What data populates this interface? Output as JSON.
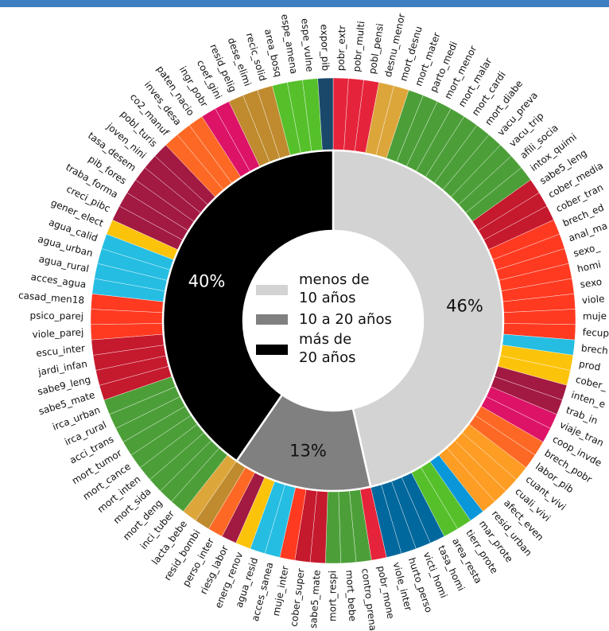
{
  "chart_data": {
    "type": "nested-donut",
    "inner_ring": [
      {
        "name": "menos de 10 años",
        "value": 46,
        "label": "46%",
        "color": "#d3d3d3",
        "text_color": "#111111"
      },
      {
        "name": "10 a 20 años",
        "value": 13,
        "label": "13%",
        "color": "#808080",
        "text_color": "#111111"
      },
      {
        "name": "más de 20 años",
        "value": 40,
        "label": "40%",
        "color": "#000000",
        "text_color": "#ffffff"
      }
    ],
    "legend": [
      {
        "line1": "menos de",
        "line2": "10 años",
        "color": "#d3d3d3"
      },
      {
        "line1": "10 a 20 años",
        "line2": "",
        "color": "#808080"
      },
      {
        "line1": "más de",
        "line2": "20 años",
        "color": "#000000"
      }
    ],
    "outer_ring": [
      {
        "label": "pobr_extr",
        "color": "#e5243b"
      },
      {
        "label": "pobr_multi",
        "color": "#e5243b"
      },
      {
        "label": "pobl_pensi",
        "color": "#e5243b"
      },
      {
        "label": "desnu_menor",
        "color": "#dda63a"
      },
      {
        "label": "mort_desnu",
        "color": "#dda63a"
      },
      {
        "label": "mort_mater",
        "color": "#4c9f38"
      },
      {
        "label": "parto_medi",
        "color": "#4c9f38"
      },
      {
        "label": "mort_menor",
        "color": "#4c9f38"
      },
      {
        "label": "mort_malar",
        "color": "#4c9f38"
      },
      {
        "label": "mort_cardi",
        "color": "#4c9f38"
      },
      {
        "label": "mort_diabe",
        "color": "#4c9f38"
      },
      {
        "label": "vacu_preva",
        "color": "#4c9f38"
      },
      {
        "label": "vacu_trip",
        "color": "#4c9f38"
      },
      {
        "label": "afili_socia",
        "color": "#4c9f38"
      },
      {
        "label": "intox_quimi",
        "color": "#4c9f38"
      },
      {
        "label": "sabe5_leng",
        "color": "#c5192d"
      },
      {
        "label": "cober_media",
        "color": "#c5192d"
      },
      {
        "label": "cober_tran",
        "color": "#c5192d"
      },
      {
        "label": "brech_ed",
        "color": "#ff3a21"
      },
      {
        "label": "anal_ma",
        "color": "#ff3a21"
      },
      {
        "label": "sexo_",
        "color": "#ff3a21"
      },
      {
        "label": "homi",
        "color": "#ff3a21"
      },
      {
        "label": "sexo",
        "color": "#ff3a21"
      },
      {
        "label": "viole",
        "color": "#ff3a21"
      },
      {
        "label": "muje",
        "color": "#ff3a21"
      },
      {
        "label": "fecup",
        "color": "#ff3a21"
      },
      {
        "label": "brech",
        "color": "#26bde2"
      },
      {
        "label": "prod",
        "color": "#fcc30b"
      },
      {
        "label": "cober_",
        "color": "#fcc30b"
      },
      {
        "label": "inten_e",
        "color": "#a21942"
      },
      {
        "label": "trab_in",
        "color": "#a21942"
      },
      {
        "label": "viaje_tran",
        "color": "#dd1367"
      },
      {
        "label": "coop_invde",
        "color": "#dd1367"
      },
      {
        "label": "brech_pobr",
        "color": "#fd6925"
      },
      {
        "label": "labor_pib",
        "color": "#fd6925"
      },
      {
        "label": "cuant_vivi",
        "color": "#fd9d24"
      },
      {
        "label": "cuali_vivi",
        "color": "#fd9d24"
      },
      {
        "label": "afect_even",
        "color": "#fd9d24"
      },
      {
        "label": "resid_urban",
        "color": "#fd9d24"
      },
      {
        "label": "mar_prote",
        "color": "#0a97d9"
      },
      {
        "label": "tierr_prote",
        "color": "#56c02b"
      },
      {
        "label": "area_resta",
        "color": "#56c02b"
      },
      {
        "label": "tasa_homi",
        "color": "#00689d"
      },
      {
        "label": "victi_homi",
        "color": "#00689d"
      },
      {
        "label": "hurto_perso",
        "color": "#00689d"
      },
      {
        "label": "viole_inter",
        "color": "#00689d"
      },
      {
        "label": "pobr_mone",
        "color": "#e5243b"
      },
      {
        "label": "contro_prena",
        "color": "#4c9f38"
      },
      {
        "label": "mort_bebe",
        "color": "#4c9f38"
      },
      {
        "label": "mort_respi",
        "color": "#4c9f38"
      },
      {
        "label": "sabe5_mate",
        "color": "#c5192d"
      },
      {
        "label": "cober_super",
        "color": "#c5192d"
      },
      {
        "label": "muje_inter",
        "color": "#ff3a21"
      },
      {
        "label": "acces_sanea",
        "color": "#26bde2"
      },
      {
        "label": "agua_resid",
        "color": "#26bde2"
      },
      {
        "label": "energ_renov",
        "color": "#fcc30b"
      },
      {
        "label": "riesg_labor",
        "color": "#a21942"
      },
      {
        "label": "perso_inter",
        "color": "#fd6925"
      },
      {
        "label": "resid_bombi",
        "color": "#bf8b2e"
      },
      {
        "label": "lacta_bebe",
        "color": "#dda63a"
      },
      {
        "label": "inci_tuber",
        "color": "#4c9f38"
      },
      {
        "label": "mort_deng",
        "color": "#4c9f38"
      },
      {
        "label": "mort_sida",
        "color": "#4c9f38"
      },
      {
        "label": "mort_inten",
        "color": "#4c9f38"
      },
      {
        "label": "mort_cance",
        "color": "#4c9f38"
      },
      {
        "label": "mort_tumor",
        "color": "#4c9f38"
      },
      {
        "label": "acci_trans",
        "color": "#4c9f38"
      },
      {
        "label": "irca_rural",
        "color": "#4c9f38"
      },
      {
        "label": "irca_urban",
        "color": "#4c9f38"
      },
      {
        "label": "sabe5_mate",
        "color": "#c5192d"
      },
      {
        "label": "sabe9_leng",
        "color": "#c5192d"
      },
      {
        "label": "jardi_infan",
        "color": "#c5192d"
      },
      {
        "label": "escu_inter",
        "color": "#c5192d"
      },
      {
        "label": "viole_parej",
        "color": "#ff3a21"
      },
      {
        "label": "psico_parej",
        "color": "#ff3a21"
      },
      {
        "label": "casad_men18",
        "color": "#ff3a21"
      },
      {
        "label": "acces_agua",
        "color": "#26bde2"
      },
      {
        "label": "agua_rural",
        "color": "#26bde2"
      },
      {
        "label": "agua_urban",
        "color": "#26bde2"
      },
      {
        "label": "agua_calid",
        "color": "#26bde2"
      },
      {
        "label": "gener_elect",
        "color": "#fcc30b"
      },
      {
        "label": "creci_pibc",
        "color": "#a21942"
      },
      {
        "label": "traba_forma",
        "color": "#a21942"
      },
      {
        "label": "pib_fores",
        "color": "#a21942"
      },
      {
        "label": "tasa_desem",
        "color": "#a21942"
      },
      {
        "label": "joven_nini",
        "color": "#a21942"
      },
      {
        "label": "pobl_turis",
        "color": "#a21942"
      },
      {
        "label": "co2_manuf",
        "color": "#fd6925"
      },
      {
        "label": "inves_desa",
        "color": "#fd6925"
      },
      {
        "label": "paten_nacio",
        "color": "#fd6925"
      },
      {
        "label": "ingr_pobr",
        "color": "#dd1367"
      },
      {
        "label": "coef_gini",
        "color": "#dd1367"
      },
      {
        "label": "resid_pelig",
        "color": "#bf8b2e"
      },
      {
        "label": "dese_elimi",
        "color": "#bf8b2e"
      },
      {
        "label": "recic_solid",
        "color": "#bf8b2e"
      },
      {
        "label": "area_bosq",
        "color": "#56c02b"
      },
      {
        "label": "espe_amena",
        "color": "#56c02b"
      },
      {
        "label": "espe_vulne",
        "color": "#56c02b"
      },
      {
        "label": "expor_pib",
        "color": "#19486a"
      }
    ]
  }
}
